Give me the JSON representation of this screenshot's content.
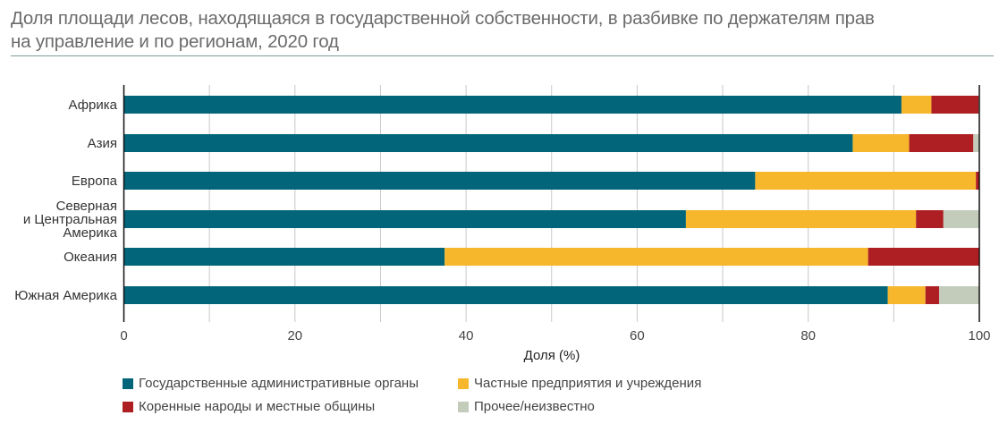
{
  "title_line1": "Доля площади лесов, находящаяся в государственной собственности, в разбивке по держателям прав",
  "title_line2": "на управление и по регионам, 2020 год",
  "colors": {
    "government": "#03657a",
    "private": "#f6b72c",
    "indigenous": "#ad1f22",
    "other": "#c3cbbb",
    "grid": "#c8c8c8",
    "axis": "#111111"
  },
  "chart_data": {
    "type": "bar",
    "orientation": "horizontal",
    "stacked": true,
    "title": "Доля площади лесов, находящаяся в государственной собственности, в разбивке по держателям прав на управление и по регионам, 2020 год",
    "xlabel": "Доля (%)",
    "ylabel": "",
    "xlim": [
      0,
      100
    ],
    "xticks": [
      0,
      20,
      40,
      60,
      80,
      100
    ],
    "xtick_labels": [
      "0",
      "20",
      "40",
      "60",
      "80",
      "100"
    ],
    "grid": "vertical, every 10",
    "categories": [
      [
        "Африка"
      ],
      [
        "Азия"
      ],
      [
        "Европа"
      ],
      [
        "Северная",
        "и Центральная",
        "Америка"
      ],
      [
        "Океания"
      ],
      [
        "Южная Америка"
      ]
    ],
    "series": [
      {
        "name": "Государственные административные органы",
        "key": "government",
        "values": [
          90.9,
          85.2,
          73.8,
          65.7,
          37.5,
          89.3
        ]
      },
      {
        "name": "Частные предприятия и учреждения",
        "key": "private",
        "values": [
          3.5,
          6.6,
          25.8,
          26.9,
          49.5,
          4.4
        ]
      },
      {
        "name": "Коренные народы и местные общины",
        "key": "indigenous",
        "values": [
          5.5,
          7.5,
          0.4,
          3.2,
          13.0,
          1.6
        ]
      },
      {
        "name": "Прочее/неизвестно",
        "key": "other",
        "values": [
          0.1,
          0.7,
          0.0,
          4.2,
          0.0,
          4.7
        ]
      }
    ],
    "legend": "bottom, two columns"
  }
}
